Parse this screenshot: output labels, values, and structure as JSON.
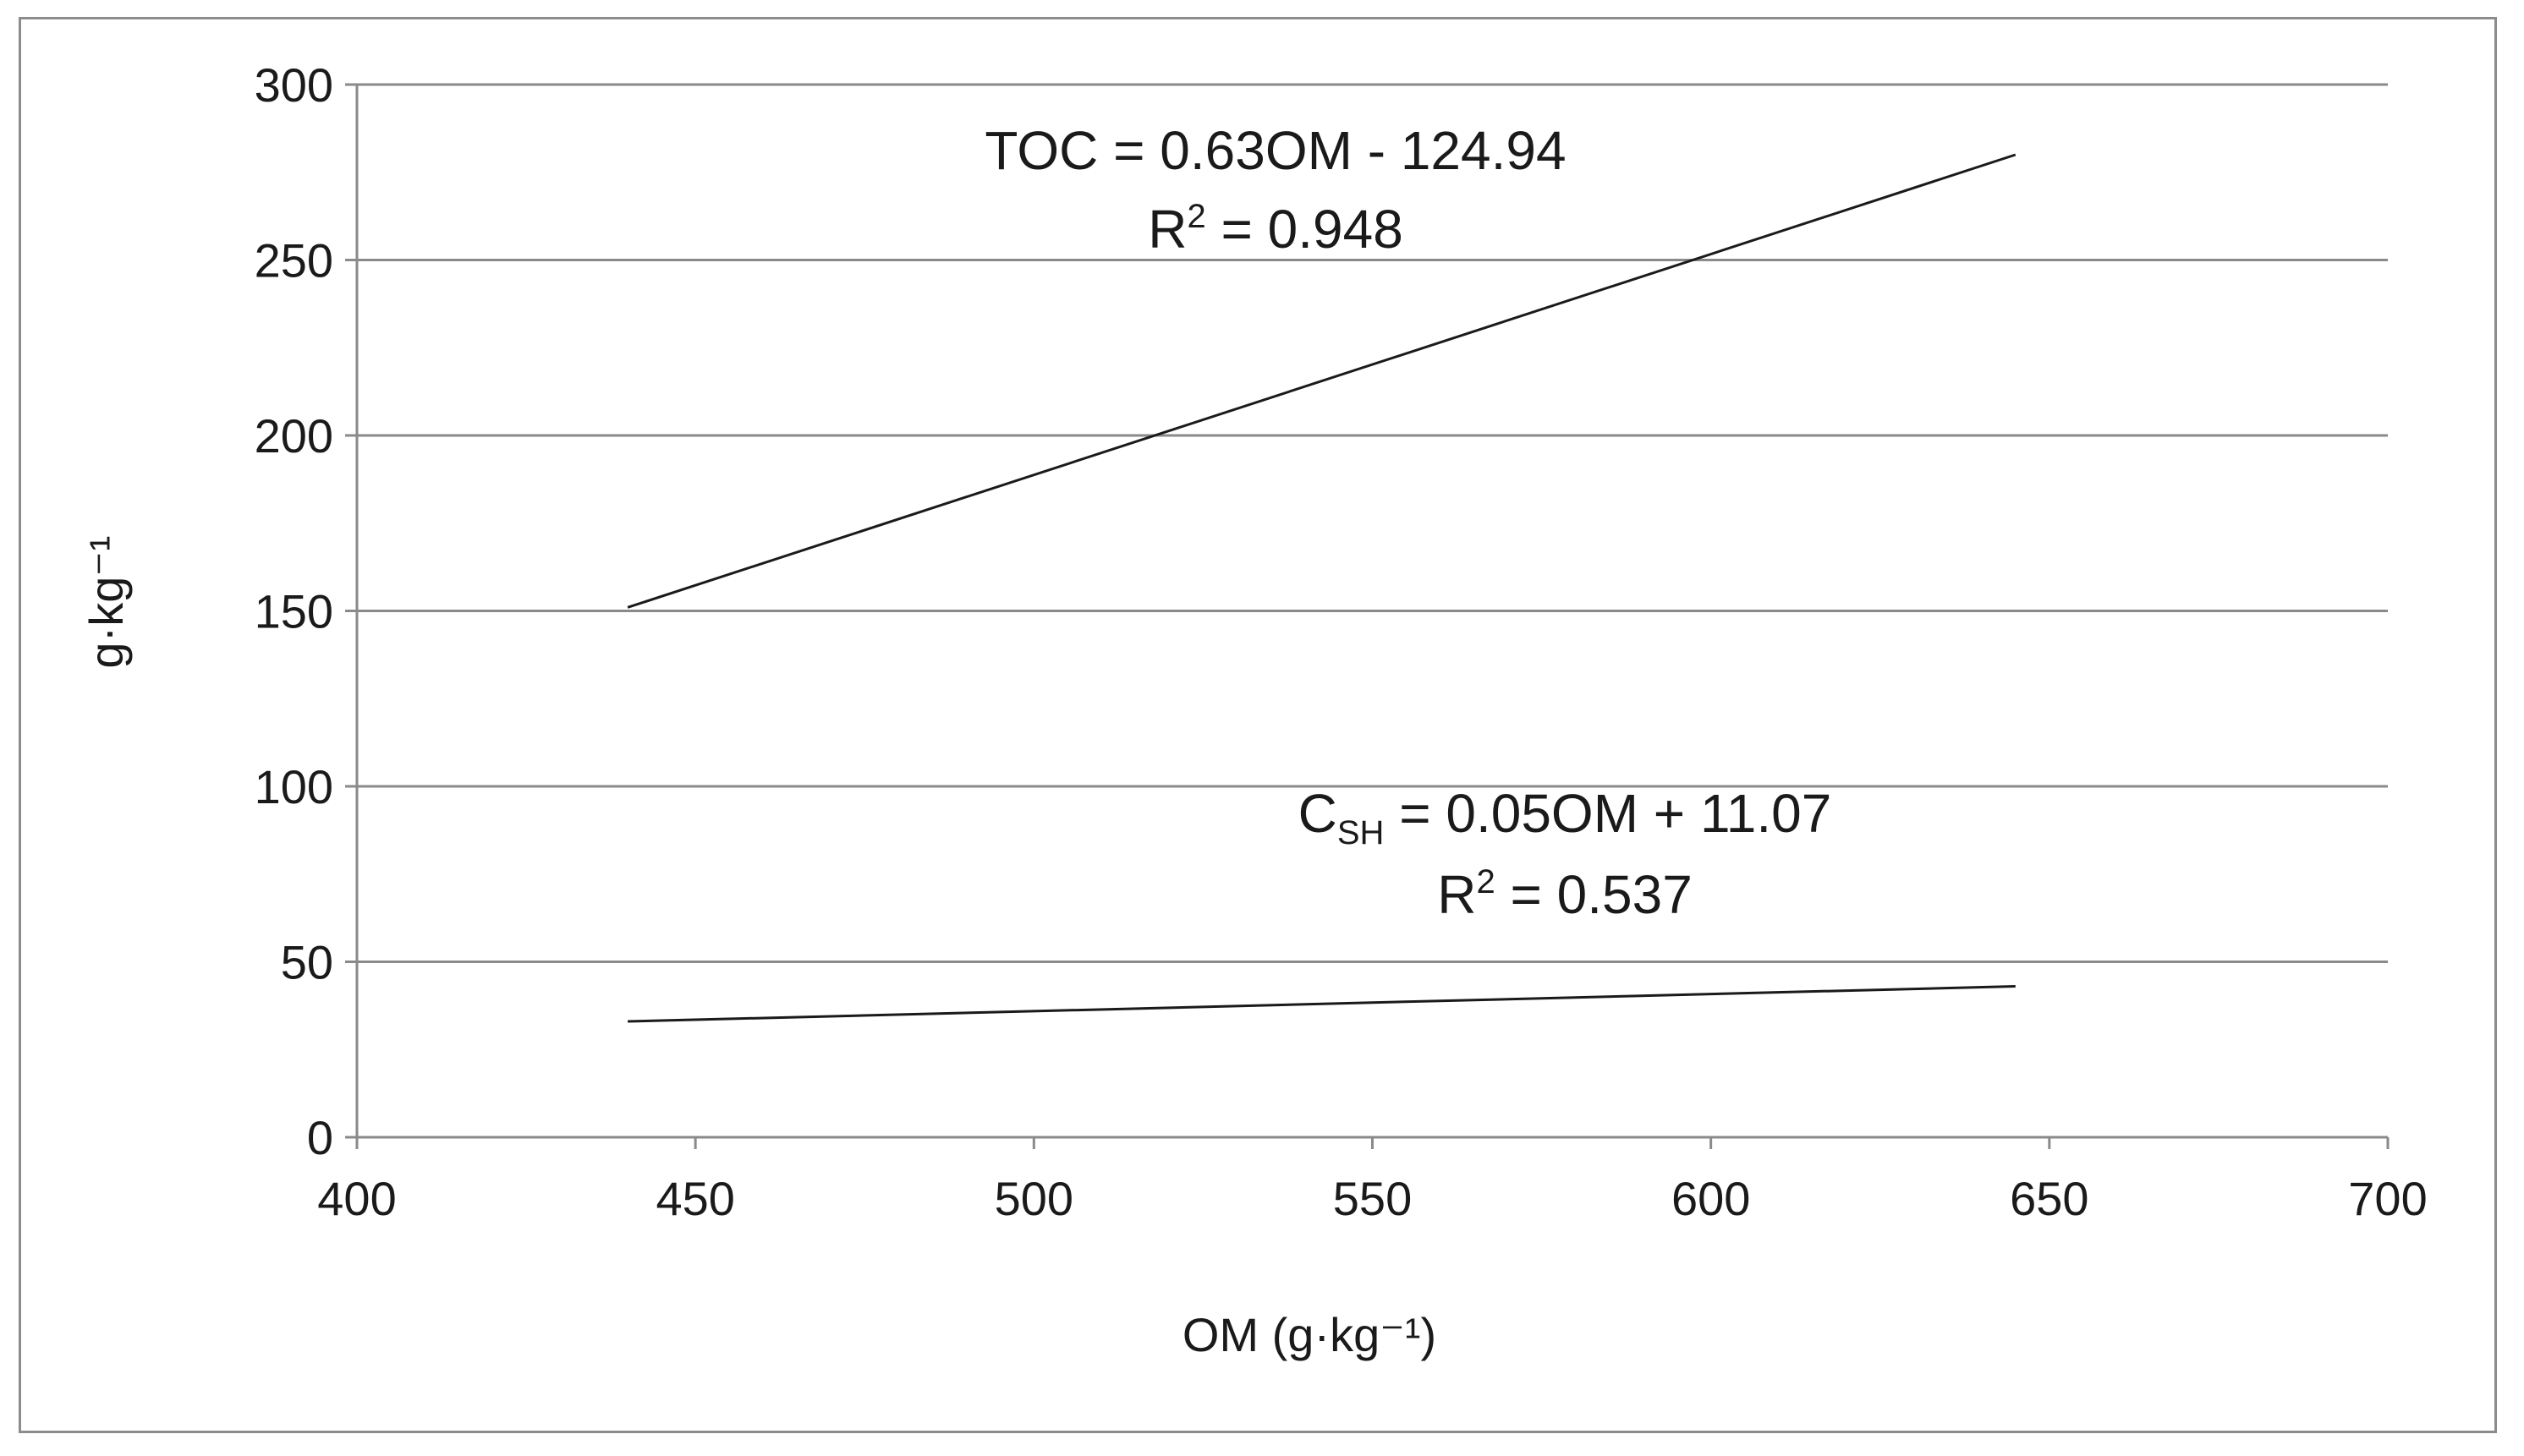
{
  "chart_data": {
    "type": "line",
    "xlabel": "OM (g·kg⁻¹)",
    "ylabel": "g·kg⁻¹",
    "xlim": [
      400,
      700
    ],
    "ylim": [
      0,
      300
    ],
    "x_ticks": [
      "400",
      "450",
      "500",
      "550",
      "600",
      "650",
      "700"
    ],
    "y_ticks": [
      "0",
      "50",
      "100",
      "150",
      "200",
      "250",
      "300"
    ],
    "grid": "horizontal",
    "series": [
      {
        "id": "toc",
        "x": [
          440,
          645
        ],
        "y": [
          151,
          280
        ]
      },
      {
        "id": "csh",
        "x": [
          440,
          645
        ],
        "y": [
          33,
          43
        ]
      }
    ],
    "annotations": [
      {
        "for": "toc",
        "line1": "TOC = 0.63OM - 124.94",
        "line2_prefix": "R",
        "line2_sup": "2",
        "line2_rest": " = 0.948"
      },
      {
        "for": "csh",
        "line1_prefix": "C",
        "line1_sub": "SH",
        "line1_rest": " = 0.05OM + 11.07",
        "line2_prefix": "R",
        "line2_sup": "2",
        "line2_rest": " = 0.537"
      }
    ]
  }
}
